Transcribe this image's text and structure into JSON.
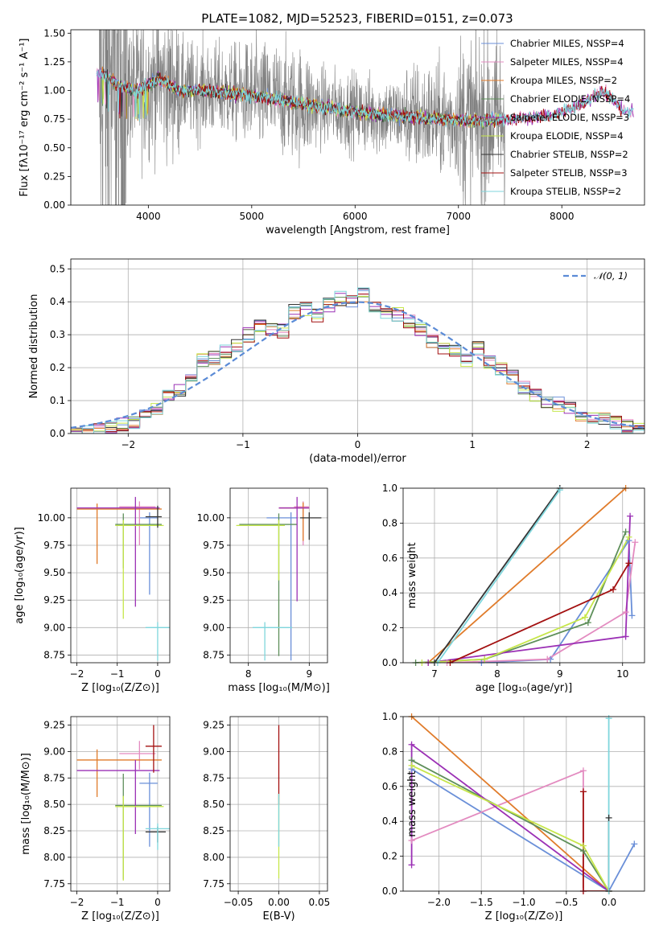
{
  "title": "PLATE=1082, MJD=52523, FIBERID=0151, z=0.073",
  "colors": {
    "chabrier_miles": "#6a8fd8",
    "salpeter_miles": "#e38bc0",
    "kroupa_miles": "#e07b2a",
    "chabrier_elodie": "#5e8f5a",
    "salpeter_elodie": "#9b30b5",
    "kroupa_elodie": "#c6e64a",
    "chabrier_stelib": "#333333",
    "salpeter_stelib": "#a31010",
    "kroupa_stelib": "#7fd6dc",
    "data": "#808080",
    "normal": "#5b8bd6"
  },
  "chart_data": [
    {
      "id": "spectrum",
      "type": "line",
      "xlabel": "wavelength [Angstrom, rest frame]",
      "ylabel": "Flux [fλ10⁻¹⁷ erg cm⁻² s⁻¹ A⁻¹]",
      "xlim": [
        3250,
        8800
      ],
      "ylim": [
        0,
        1.53
      ],
      "xticks": [
        "4000",
        "5000",
        "6000",
        "7000",
        "8000"
      ],
      "xtick_values": [
        4000,
        5000,
        6000,
        7000,
        8000
      ],
      "yticks": [
        "0.00",
        "0.25",
        "0.50",
        "0.75",
        "1.00",
        "1.25",
        "1.50"
      ],
      "ytick_values": [
        0,
        0.25,
        0.5,
        0.75,
        1.0,
        1.25,
        1.5
      ],
      "legend": [
        "Chabrier MILES, N_SSP=4",
        "Salpeter MILES, N_SSP=4",
        "Kroupa MILES, N_SSP=2",
        "Chabrier ELODIE, N_SSP=4",
        "Salpeter ELODIE, N_SSP=3",
        "Kroupa ELODIE, N_SSP=4",
        "Chabrier STELIB, N_SSP=2",
        "Salpeter STELIB, N_SSP=3",
        "Kroupa STELIB, N_SSP=2"
      ],
      "legend_placement": "right",
      "model_trend": {
        "wavelength": [
          3550,
          3700,
          3900,
          4100,
          4300,
          4600,
          4900,
          5200,
          5500,
          5800,
          6100,
          6400,
          6700,
          7000,
          7300,
          7600,
          7900,
          8200,
          8400,
          8600
        ],
        "flux": [
          1.15,
          1.05,
          1.0,
          1.1,
          1.0,
          1.0,
          0.97,
          0.93,
          0.88,
          0.84,
          0.8,
          0.78,
          0.76,
          0.74,
          0.74,
          0.76,
          0.78,
          0.88,
          1.0,
          0.82
        ]
      },
      "grid": false
    },
    {
      "id": "residuals",
      "type": "line",
      "xlabel": "(data-model)/error",
      "ylabel": "Normed distribution",
      "xlim": [
        -2.5,
        2.5
      ],
      "ylim": [
        0,
        0.53
      ],
      "xticks": [
        "−2",
        "−1",
        "0",
        "1",
        "2"
      ],
      "xtick_values": [
        -2,
        -1,
        0,
        1,
        2
      ],
      "yticks": [
        "0.0",
        "0.1",
        "0.2",
        "0.3",
        "0.4",
        "0.5"
      ],
      "ytick_values": [
        0,
        0.1,
        0.2,
        0.3,
        0.4,
        0.5
      ],
      "legend": [
        "𝒩(0, 1)"
      ],
      "legend_placement": "top-right",
      "bin_centers": [
        -2.45,
        -2.35,
        -2.25,
        -2.15,
        -2.05,
        -1.95,
        -1.85,
        -1.75,
        -1.65,
        -1.55,
        -1.45,
        -1.35,
        -1.25,
        -1.15,
        -1.05,
        -0.95,
        -0.85,
        -0.75,
        -0.65,
        -0.55,
        -0.45,
        -0.35,
        -0.25,
        -0.15,
        -0.05,
        0.05,
        0.15,
        0.25,
        0.35,
        0.45,
        0.55,
        0.65,
        0.75,
        0.85,
        0.95,
        1.05,
        1.15,
        1.25,
        1.35,
        1.45,
        1.55,
        1.65,
        1.75,
        1.85,
        1.95,
        2.05,
        2.15,
        2.25,
        2.35,
        2.45
      ],
      "histogram": [
        0.0,
        0.005,
        0.01,
        0.015,
        0.025,
        0.035,
        0.055,
        0.08,
        0.11,
        0.13,
        0.18,
        0.22,
        0.23,
        0.25,
        0.27,
        0.3,
        0.33,
        0.32,
        0.31,
        0.37,
        0.38,
        0.36,
        0.39,
        0.41,
        0.4,
        0.42,
        0.38,
        0.36,
        0.36,
        0.34,
        0.32,
        0.28,
        0.26,
        0.25,
        0.22,
        0.26,
        0.22,
        0.2,
        0.17,
        0.14,
        0.12,
        0.1,
        0.09,
        0.075,
        0.06,
        0.05,
        0.04,
        0.03,
        0.02,
        0.015
      ],
      "grid": true
    },
    {
      "id": "age_vs_Z",
      "type": "scatter",
      "xlabel": "Z [log₁₀(Z/Z⊙)]",
      "ylabel": "age  [log₁₀(age/yr)]",
      "xlim": [
        -2.15,
        0.3
      ],
      "ylim": [
        8.68,
        10.27
      ],
      "xticks": [
        "−2",
        "−1",
        "0"
      ],
      "xtick_values": [
        -2,
        -1,
        0
      ],
      "yticks": [
        "8.75",
        "9.00",
        "9.25",
        "9.50",
        "9.75",
        "10.00"
      ],
      "ytick_values": [
        8.75,
        9.0,
        9.25,
        9.5,
        9.75,
        10.0
      ],
      "points": [
        {
          "model": "chabrier_miles",
          "x": -0.2,
          "y": 10.0,
          "xerr": [
            0.25,
            0.2
          ],
          "yerr": [
            0.7,
            0.05
          ]
        },
        {
          "model": "salpeter_miles",
          "x": -0.45,
          "y": 10.1,
          "xerr": [
            0.5,
            0.4
          ],
          "yerr": [
            0.35,
            0.05
          ]
        },
        {
          "model": "kroupa_miles",
          "x": -1.5,
          "y": 10.08,
          "xerr": [
            0.5,
            1.6
          ],
          "yerr": [
            0.5,
            0.05
          ]
        },
        {
          "model": "chabrier_elodie",
          "x": -0.85,
          "y": 9.94,
          "xerr": [
            0.2,
            0.95
          ],
          "yerr": [
            0.4,
            0.1
          ]
        },
        {
          "model": "salpeter_elodie",
          "x": -0.55,
          "y": 10.09,
          "xerr": [
            1.45,
            0.6
          ],
          "yerr": [
            0.9,
            0.1
          ]
        },
        {
          "model": "kroupa_elodie",
          "x": -0.85,
          "y": 9.93,
          "xerr": [
            0.2,
            1.0
          ],
          "yerr": [
            0.85,
            0.05
          ]
        },
        {
          "model": "chabrier_stelib",
          "x": 0.0,
          "y": 10.01,
          "xerr": [
            0.3,
            0.1
          ],
          "yerr": [
            0.1,
            0.1
          ]
        },
        {
          "model": "kroupa_stelib",
          "x": 0.0,
          "y": 9.0,
          "xerr": [
            0.3,
            0.3
          ],
          "yerr": [
            0.3,
            0.05
          ]
        }
      ],
      "grid": true
    },
    {
      "id": "age_vs_mass",
      "type": "scatter",
      "xlabel": "mass [log₁₀(M/M⊙)]",
      "ylabel": "",
      "xlim": [
        7.7,
        9.3
      ],
      "ylim": [
        8.68,
        10.27
      ],
      "xticks": [
        "8",
        "9"
      ],
      "xtick_values": [
        8,
        9
      ],
      "yticks": [
        "8.75",
        "9.00",
        "9.25",
        "9.50",
        "9.75",
        "10.00"
      ],
      "ytick_values": [
        8.75,
        9.0,
        9.25,
        9.5,
        9.75,
        10.0
      ],
      "points": [
        {
          "model": "chabrier_miles",
          "x": 8.7,
          "y": 10.0,
          "xerr": [
            0.4,
            0.1
          ],
          "yerr": [
            1.3,
            0.05
          ]
        },
        {
          "model": "salpeter_miles",
          "x": 8.9,
          "y": 10.1,
          "xerr": [
            0.15,
            0.1
          ],
          "yerr": [
            0.35,
            0.05
          ]
        },
        {
          "model": "kroupa_miles",
          "x": 8.9,
          "y": 10.09,
          "xerr": [
            0.4,
            0.1
          ],
          "yerr": [
            0.3,
            0.05
          ]
        },
        {
          "model": "chabrier_elodie",
          "x": 8.5,
          "y": 9.94,
          "xerr": [
            0.65,
            0.3
          ],
          "yerr": [
            1.2,
            0.1
          ]
        },
        {
          "model": "salpeter_elodie",
          "x": 8.8,
          "y": 10.09,
          "xerr": [
            0.3,
            0.2
          ],
          "yerr": [
            0.85,
            0.1
          ]
        },
        {
          "model": "kroupa_elodie",
          "x": 8.5,
          "y": 9.93,
          "xerr": [
            0.7,
            0.1
          ],
          "yerr": [
            0.5,
            0.05
          ]
        },
        {
          "model": "chabrier_stelib",
          "x": 9.0,
          "y": 10.0,
          "xerr": [
            0.15,
            0.2
          ],
          "yerr": [
            0.2,
            0.05
          ]
        },
        {
          "model": "kroupa_stelib",
          "x": 8.27,
          "y": 9.0,
          "xerr": [
            0.2,
            0.45
          ],
          "yerr": [
            0.3,
            0.05
          ]
        }
      ],
      "grid": true
    },
    {
      "id": "weight_vs_age",
      "type": "line",
      "xlabel": "age  [log₁₀(age/yr)]",
      "ylabel": "mass weight",
      "xlim": [
        6.5,
        10.35
      ],
      "ylim": [
        0,
        1.0
      ],
      "xticks": [
        "7",
        "8",
        "9",
        "10"
      ],
      "xtick_values": [
        7,
        8,
        9,
        10
      ],
      "yticks": [
        "0.0",
        "0.2",
        "0.4",
        "0.6",
        "0.8",
        "1.0"
      ],
      "ytick_values": [
        0,
        0.2,
        0.4,
        0.6,
        0.8,
        1.0
      ],
      "series": [
        {
          "model": "chabrier_miles",
          "x": [
            7.75,
            8.85,
            10.1,
            10.15
          ],
          "y": [
            0.0,
            0.02,
            0.7,
            0.27
          ]
        },
        {
          "model": "salpeter_miles",
          "x": [
            7.2,
            8.8,
            10.05,
            10.2
          ],
          "y": [
            0.0,
            0.02,
            0.29,
            0.69
          ]
        },
        {
          "model": "kroupa_miles",
          "x": [
            6.9,
            10.05
          ],
          "y": [
            0.0,
            1.0
          ]
        },
        {
          "model": "chabrier_elodie",
          "x": [
            6.7,
            7.8,
            9.45,
            10.05
          ],
          "y": [
            0.0,
            0.02,
            0.23,
            0.75
          ]
        },
        {
          "model": "salpeter_elodie",
          "x": [
            6.9,
            10.05,
            10.12
          ],
          "y": [
            0.0,
            0.15,
            0.84
          ]
        },
        {
          "model": "kroupa_elodie",
          "x": [
            6.8,
            7.8,
            9.4,
            10.1
          ],
          "y": [
            0.0,
            0.02,
            0.26,
            0.72
          ]
        },
        {
          "model": "chabrier_stelib",
          "x": [
            7.0,
            9.0
          ],
          "y": [
            0.0,
            1.0
          ]
        },
        {
          "model": "salpeter_stelib",
          "x": [
            7.25,
            9.85,
            10.1
          ],
          "y": [
            0.0,
            0.42,
            0.57
          ]
        },
        {
          "model": "kroupa_stelib",
          "x": [
            7.05,
            9.0
          ],
          "y": [
            0.0,
            0.99
          ]
        }
      ],
      "grid": true
    },
    {
      "id": "mass_vs_Z",
      "type": "scatter",
      "xlabel": "Z [log₁₀(Z/Z⊙)]",
      "ylabel": "mass [log₁₀(M/M⊙)]",
      "xlim": [
        -2.15,
        0.3
      ],
      "ylim": [
        7.68,
        9.33
      ],
      "xticks": [
        "−2",
        "−1",
        "0"
      ],
      "xtick_values": [
        -2,
        -1,
        0
      ],
      "yticks": [
        "7.75",
        "8.00",
        "8.25",
        "8.50",
        "8.75",
        "9.00",
        "9.25"
      ],
      "ytick_values": [
        7.75,
        8.0,
        8.25,
        8.5,
        8.75,
        9.0,
        9.25
      ],
      "points": [
        {
          "model": "chabrier_miles",
          "x": -0.2,
          "y": 8.7,
          "xerr": [
            0.25,
            0.2
          ],
          "yerr": [
            0.6,
            0.1
          ]
        },
        {
          "model": "salpeter_miles",
          "x": -0.45,
          "y": 8.98,
          "xerr": [
            0.5,
            0.4
          ],
          "yerr": [
            0.15,
            0.12
          ]
        },
        {
          "model": "kroupa_miles",
          "x": -1.5,
          "y": 8.92,
          "xerr": [
            0.5,
            1.6
          ],
          "yerr": [
            0.35,
            0.1
          ]
        },
        {
          "model": "chabrier_elodie",
          "x": -0.85,
          "y": 8.49,
          "xerr": [
            0.2,
            0.95
          ],
          "yerr": [
            0.7,
            0.3
          ]
        },
        {
          "model": "salpeter_elodie",
          "x": -0.55,
          "y": 8.82,
          "xerr": [
            1.45,
            0.6
          ],
          "yerr": [
            0.6,
            0.1
          ]
        },
        {
          "model": "kroupa_elodie",
          "x": -0.85,
          "y": 8.48,
          "xerr": [
            0.2,
            1.0
          ],
          "yerr": [
            0.7,
            0.1
          ]
        },
        {
          "model": "chabrier_stelib",
          "x": 0.0,
          "y": 8.24,
          "xerr": [
            0.3,
            0.2
          ],
          "yerr": [
            0.1,
            0.05
          ]
        },
        {
          "model": "salpeter_stelib",
          "x": -0.1,
          "y": 9.05,
          "xerr": [
            0.2,
            0.2
          ],
          "yerr": [
            0.25,
            0.2
          ]
        },
        {
          "model": "kroupa_stelib",
          "x": 0.0,
          "y": 8.27,
          "xerr": [
            0.3,
            0.3
          ],
          "yerr": [
            0.2,
            0.05
          ]
        }
      ],
      "grid": true
    },
    {
      "id": "mass_vs_ebv",
      "type": "scatter",
      "xlabel": "E(B-V)",
      "ylabel": "",
      "xlim": [
        -0.06,
        0.06
      ],
      "ylim": [
        7.68,
        9.33
      ],
      "xticks": [
        "−0.05",
        "0.00",
        "0.05"
      ],
      "xtick_values": [
        -0.05,
        0.0,
        0.05
      ],
      "yticks": [
        "7.75",
        "8.00",
        "8.25",
        "8.50",
        "8.75",
        "9.00",
        "9.25"
      ],
      "ytick_values": [
        7.75,
        8.0,
        8.25,
        8.5,
        8.75,
        9.0,
        9.25
      ],
      "points": [
        {
          "model": "salpeter_stelib",
          "x": 0.0,
          "y": 8.9,
          "xerr": [
            0.0,
            0.0
          ],
          "yerr": [
            0.4,
            0.35
          ]
        },
        {
          "model": "kroupa_elodie",
          "x": 0.0,
          "y": 8.2,
          "xerr": [
            0.0,
            0.0
          ],
          "yerr": [
            0.4,
            0.4
          ]
        },
        {
          "model": "kroupa_stelib",
          "x": 0.0,
          "y": 8.3,
          "xerr": [
            0.0,
            0.0
          ],
          "yerr": [
            0.2,
            0.3
          ]
        }
      ],
      "grid": true
    },
    {
      "id": "weight_vs_Z",
      "type": "line",
      "xlabel": "Z [log₁₀(Z/Z⊙)]",
      "ylabel": "mass weight",
      "xlim": [
        -2.42,
        0.42
      ],
      "ylim": [
        0,
        1.0
      ],
      "xticks": [
        "−2.0",
        "−1.5",
        "−1.0",
        "−0.5",
        "0.0"
      ],
      "xtick_values": [
        -2.0,
        -1.5,
        -1.0,
        -0.5,
        0.0
      ],
      "yticks": [
        "0.0",
        "0.2",
        "0.4",
        "0.6",
        "0.8",
        "1.0"
      ],
      "ytick_values": [
        0,
        0.2,
        0.4,
        0.6,
        0.8,
        1.0
      ],
      "series": [
        {
          "model": "chabrier_miles",
          "x": [
            -2.32,
            0.0,
            0.3
          ],
          "y": [
            0.7,
            0.0,
            0.27
          ]
        },
        {
          "model": "salpeter_miles",
          "x": [
            -2.32,
            -0.3,
            -0.3
          ],
          "y": [
            0.29,
            0.69,
            0.0
          ]
        },
        {
          "model": "kroupa_miles",
          "x": [
            -2.32,
            0.0
          ],
          "y": [
            1.0,
            0.0
          ]
        },
        {
          "model": "chabrier_elodie",
          "x": [
            -2.32,
            -0.3,
            0.0
          ],
          "y": [
            0.75,
            0.23,
            0.0
          ]
        },
        {
          "model": "salpeter_elodie",
          "x": [
            -2.32,
            -2.32,
            0.0
          ],
          "y": [
            0.15,
            0.84,
            0.0
          ]
        },
        {
          "model": "kroupa_elodie",
          "x": [
            -2.32,
            -0.3,
            0.0
          ],
          "y": [
            0.72,
            0.26,
            0.0
          ]
        },
        {
          "model": "chabrier_stelib",
          "x": [
            0.0,
            0.0
          ],
          "y": [
            0.42,
            0.0
          ]
        },
        {
          "model": "salpeter_stelib",
          "x": [
            -0.3,
            -0.3,
            0.0
          ],
          "y": [
            0.57,
            0.0,
            0.0
          ]
        },
        {
          "model": "kroupa_stelib",
          "x": [
            0.0,
            0.0
          ],
          "y": [
            0.99,
            0.0
          ]
        }
      ],
      "grid": true
    }
  ]
}
